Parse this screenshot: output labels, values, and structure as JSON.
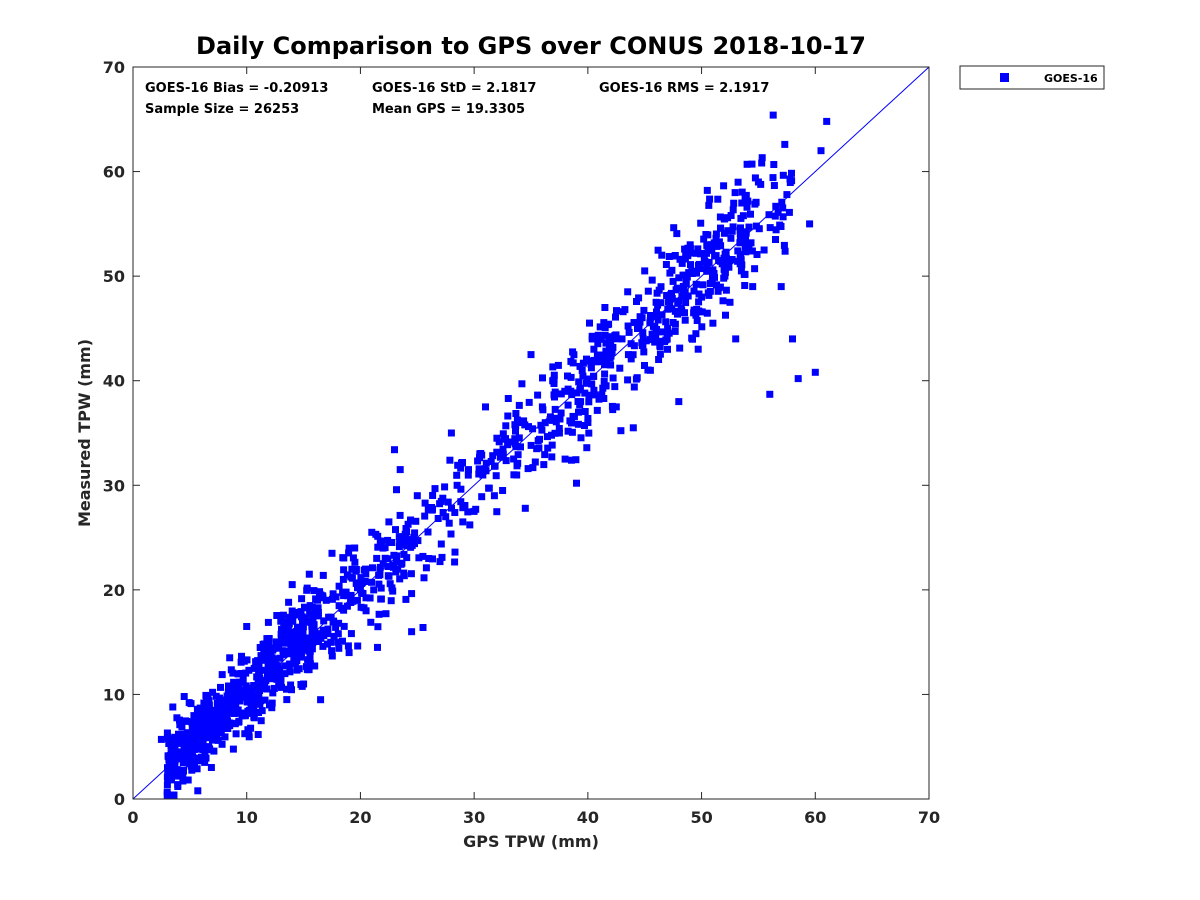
{
  "chart_data": {
    "type": "scatter",
    "title": "Daily Comparison to GPS over CONUS 2018-10-17",
    "xlabel": "GPS TPW (mm)",
    "ylabel": "Measured TPW (mm)",
    "xlim": [
      0,
      70
    ],
    "ylim": [
      0,
      70
    ],
    "xticks": [
      0,
      10,
      20,
      30,
      40,
      50,
      60,
      70
    ],
    "yticks": [
      0,
      10,
      20,
      30,
      40,
      50,
      60,
      70
    ],
    "grid": false,
    "legend_position": "outside-top-right",
    "series": [
      {
        "name": "GOES-16",
        "marker": "square",
        "color": "#0000ff",
        "sample_points": [
          [
            2.5,
            5.7
          ],
          [
            3.5,
            8.8
          ],
          [
            4.0,
            6.2
          ],
          [
            4.5,
            9.8
          ],
          [
            5.0,
            4.1
          ],
          [
            5.5,
            7.5
          ],
          [
            6.0,
            4.0
          ],
          [
            6.5,
            8.5
          ],
          [
            7.0,
            10.2
          ],
          [
            7.5,
            5.6
          ],
          [
            8.0,
            9.0
          ],
          [
            8.5,
            13.5
          ],
          [
            9.0,
            7.2
          ],
          [
            9.5,
            12.0
          ],
          [
            10.0,
            16.5
          ],
          [
            10.5,
            8.5
          ],
          [
            11.0,
            11.5
          ],
          [
            11.5,
            14.0
          ],
          [
            12.0,
            9.0
          ],
          [
            12.5,
            13.2
          ],
          [
            13.0,
            17.0
          ],
          [
            13.5,
            10.5
          ],
          [
            14.0,
            20.5
          ],
          [
            14.5,
            15.0
          ],
          [
            15.0,
            11.0
          ],
          [
            15.5,
            21.5
          ],
          [
            16.0,
            16.0
          ],
          [
            16.5,
            9.5
          ],
          [
            17.0,
            19.0
          ],
          [
            17.5,
            23.5
          ],
          [
            18.0,
            15.0
          ],
          [
            18.5,
            21.0
          ],
          [
            19.0,
            14.0
          ],
          [
            19.5,
            24.0
          ],
          [
            20.0,
            20.0
          ],
          [
            20.5,
            18.0
          ],
          [
            21.0,
            25.5
          ],
          [
            21.5,
            14.5
          ],
          [
            22.0,
            22.5
          ],
          [
            22.5,
            26.5
          ],
          [
            23.0,
            33.4
          ],
          [
            23.5,
            31.5
          ],
          [
            24.0,
            25.0
          ],
          [
            24.5,
            16.0
          ],
          [
            25.0,
            29.0
          ],
          [
            25.5,
            16.4
          ],
          [
            26.0,
            23.0
          ],
          [
            27.0,
            22.7
          ],
          [
            27.5,
            27.0
          ],
          [
            28.0,
            35.0
          ],
          [
            28.5,
            30.0
          ],
          [
            29.0,
            26.5
          ],
          [
            29.5,
            31.5
          ],
          [
            30.0,
            27.5
          ],
          [
            30.5,
            33.0
          ],
          [
            31.0,
            37.5
          ],
          [
            32.0,
            34.5
          ],
          [
            32.5,
            29.5
          ],
          [
            33.0,
            38.3
          ],
          [
            33.5,
            31.0
          ],
          [
            34.0,
            36.0
          ],
          [
            34.5,
            27.8
          ],
          [
            35.0,
            42.5
          ],
          [
            35.5,
            33.5
          ],
          [
            36.0,
            37.5
          ],
          [
            37.0,
            40.0
          ],
          [
            37.5,
            35.0
          ],
          [
            38.0,
            32.5
          ],
          [
            38.5,
            39.0
          ],
          [
            39.0,
            30.2
          ],
          [
            39.5,
            41.0
          ],
          [
            40.0,
            36.0
          ],
          [
            40.5,
            44.0
          ],
          [
            41.0,
            38.5
          ],
          [
            41.5,
            47.0
          ],
          [
            42.0,
            41.5
          ],
          [
            42.5,
            37.5
          ],
          [
            43.0,
            44.0
          ],
          [
            43.5,
            48.5
          ],
          [
            44.0,
            35.5
          ],
          [
            44.5,
            45.0
          ],
          [
            45.0,
            50.5
          ],
          [
            45.5,
            41.0
          ],
          [
            46.0,
            47.5
          ],
          [
            46.5,
            52.0
          ],
          [
            47.0,
            43.0
          ],
          [
            47.5,
            49.5
          ],
          [
            48.0,
            38.0
          ],
          [
            48.5,
            46.5
          ],
          [
            49.0,
            53.0
          ],
          [
            49.5,
            44.5
          ],
          [
            50.0,
            48.0
          ],
          [
            50.5,
            58.2
          ],
          [
            51.0,
            45.5
          ],
          [
            51.5,
            51.5
          ],
          [
            52.0,
            55.5
          ],
          [
            52.5,
            47.5
          ],
          [
            53.0,
            44.0
          ],
          [
            53.5,
            50.5
          ],
          [
            54.0,
            60.7
          ],
          [
            54.5,
            49.0
          ],
          [
            55.0,
            59.0
          ],
          [
            55.5,
            52.5
          ],
          [
            56.0,
            38.7
          ],
          [
            56.3,
            65.4
          ],
          [
            56.5,
            53.5
          ],
          [
            57.0,
            49.0
          ],
          [
            57.5,
            57.8
          ],
          [
            58.0,
            44.0
          ],
          [
            58.5,
            40.2
          ],
          [
            59.5,
            55.0
          ],
          [
            60.0,
            40.8
          ],
          [
            60.5,
            62.0
          ],
          [
            61.0,
            64.8
          ]
        ]
      }
    ],
    "reference_line": {
      "name": "1:1 line",
      "from": [
        0,
        0
      ],
      "to": [
        70,
        70
      ],
      "color": "#0000ff"
    },
    "annotations": [
      "GOES-16 Bias = -0.20913",
      "GOES-16 StD = 2.1817",
      "GOES-16 RMS = 2.1917",
      "Sample Size = 26253",
      "Mean GPS = 19.3305"
    ]
  }
}
